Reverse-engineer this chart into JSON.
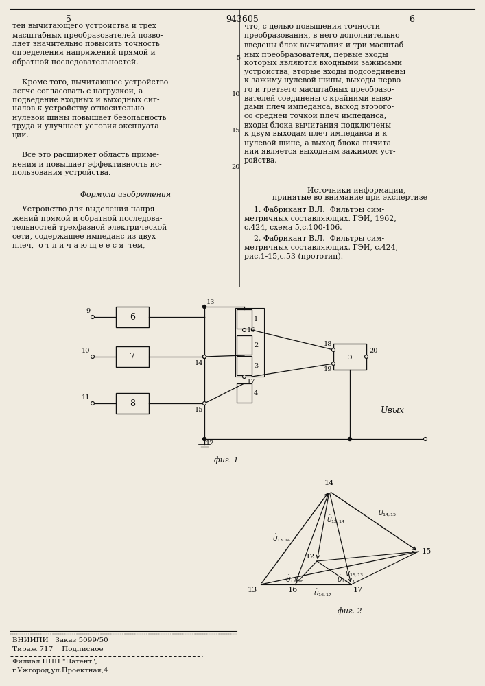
{
  "page_number_left": "5",
  "page_number_center": "943605",
  "page_number_right": "6",
  "col_left_para1": "тей вычитающего устройства и трех\nмасштабных преобразователей позво-\nляет значительно повысить точность\nопределения напряжений прямой и\nобратной последовательностей.",
  "col_left_para2": "    Кроме того, вычитающее устройство\nлегче согласовать с нагрузкой, а\nподведение входных и выходных сиг-\nналов к устройству относительно\nнулевой шины повышает безопасность\nтруда и улучшает условия эксплуата-\nции.",
  "col_left_para3": "    Все это расширяет область приме-\nнения и повышает эффективность ис-\nпользования устройства.",
  "formula_header": "Формула изобретения",
  "formula_text": "    Устройство для выделения напря-\nжений прямой и обратной последова-\nтельностей трехфазной электрической\nсети, содержащее импеданс из двух\nплеч,  о т л и ч а ю щ е е с я  тем,",
  "col_right_para1": "что, с целью повышения точности\nпреобразования, в него дополнительно\nвведены блок вычитания и три масштаб-\nных преобразователя, первые входы\nкоторых являются входными зажимами\nустройства, вторые входы подсоединены\nк зажиму нулевой шины, выходы перво-\nго и третьего масштабных преобразо-\nвателей соединены с крайними выво-\nдами плеч импеданса, выход второго-\nсо средней точкой плеч импеданса,\nвходы блока вычитания подключены\nк двум выходам плеч импеданса и к\nнулевой шине, а выход блока вычита-\nния является выходным зажимом уст-\nройства.",
  "sources_header": "Источники информации,",
  "sources_subheader": "принятые во внимание при экспертизе",
  "source1": "    1. Фабрикант В.Л.  Фильтры сим-\nметричных составляющих. ГЭИ, 1962,\nс.424, схема 5,с.100-106.",
  "source2": "    2. Фабрикант В.Л.  Фильтры сим-\nметричных составляющих. ГЭИ, с.424,\nрис.1-15,с.53 (прототип).",
  "fig1_label": "фиг. 1",
  "fig2_label": "фиг. 2",
  "uvyx_label": "Uвых",
  "footer_vniip": "ВНИИПИ   Заказ 5099/50",
  "footer_tirazh": "Тираж 717    Подписное",
  "footer_filial": "Филиал ППП \"Патент\",",
  "footer_address": "г.Ужгород,ул.Проектная,4",
  "bg_color": "#f0ebe0",
  "text_color": "#111111"
}
